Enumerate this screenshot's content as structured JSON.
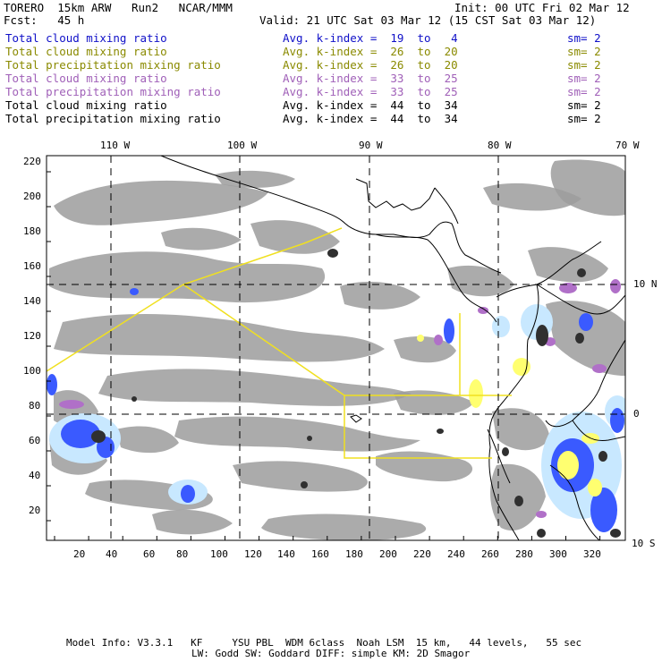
{
  "header": {
    "model": "TORERO  15km ARW   Run2   NCAR/MMM",
    "init": "Init: 00 UTC Fri 02 Mar 12",
    "fcst": "Fcst:   45 h",
    "valid": "Valid: 21 UTC Sat 03 Mar 12 (15 CST Sat 03 Mar 12)"
  },
  "legend": [
    {
      "field": "Total cloud mixing ratio",
      "kindex": "Avg. k-index =  19  to   4",
      "sm": "sm= 2",
      "color": "#1010c8"
    },
    {
      "field": "Total cloud mixing ratio",
      "kindex": "Avg. k-index =  26  to  20",
      "sm": "sm= 2",
      "color": "#8a8a00"
    },
    {
      "field": "Total precipitation mixing ratio",
      "kindex": "Avg. k-index =  26  to  20",
      "sm": "sm= 2",
      "color": "#8a8a00"
    },
    {
      "field": "Total cloud mixing ratio",
      "kindex": "Avg. k-index =  33  to  25",
      "sm": "sm= 2",
      "color": "#a060b8"
    },
    {
      "field": "Total precipitation mixing ratio",
      "kindex": "Avg. k-index =  33  to  25",
      "sm": "sm= 2",
      "color": "#a060b8"
    },
    {
      "field": "Total cloud mixing ratio",
      "kindex": "Avg. k-index =  44  to  34",
      "sm": "sm= 2",
      "color": "#000000"
    },
    {
      "field": "Total precipitation mixing ratio",
      "kindex": "Avg. k-index =  44  to  34",
      "sm": "sm= 2",
      "color": "#000000"
    }
  ],
  "axes": {
    "lon_labels": [
      "110 W",
      "100 W",
      "90 W",
      "80 W",
      "70 W"
    ],
    "lat_labels": [
      "10 N",
      "0",
      "10 S"
    ],
    "x_ticks": [
      "20",
      "40",
      "60",
      "80",
      "100",
      "120",
      "140",
      "160",
      "180",
      "200",
      "220",
      "240",
      "260",
      "280",
      "300",
      "320"
    ],
    "y_ticks": [
      "220",
      "200",
      "180",
      "160",
      "140",
      "120",
      "100",
      "80",
      "60",
      "40",
      "20"
    ]
  },
  "footer": {
    "line1": "Model Info: V3.3.1   KF     YSU PBL  WDM 6class  Noah LSM  15 km,   44 levels,   55 sec",
    "line2": "LW: Godd SW: Goddard DIFF: simple KM: 2D Smagor"
  },
  "colors": {
    "cloud_gray": "#9a9a9a",
    "blue_light": "#c8e8ff",
    "blue_mid": "#6a8cff",
    "blue_dark": "#0000e0",
    "yellow": "#ffff70",
    "purple": "#b070c8",
    "black": "#303030",
    "outline": "#f0e020"
  }
}
